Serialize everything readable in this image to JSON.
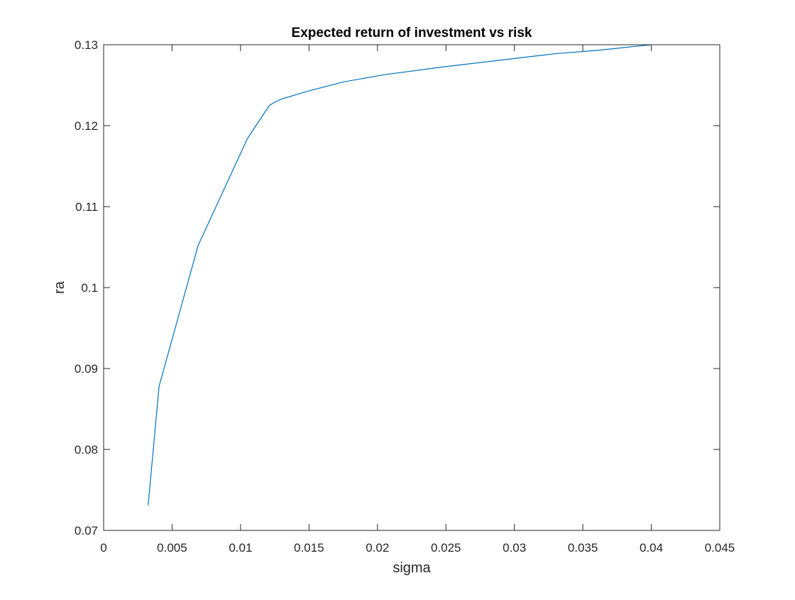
{
  "chart_data": {
    "type": "line",
    "title": "Expected return of investment vs risk",
    "xlabel": "sigma",
    "ylabel": "ra",
    "xlim": [
      0,
      0.045
    ],
    "ylim": [
      0.07,
      0.13
    ],
    "xticks": [
      0,
      0.005,
      0.01,
      0.015,
      0.02,
      0.025,
      0.03,
      0.035,
      0.04,
      0.045
    ],
    "xtick_labels": [
      "0",
      "0.005",
      "0.01",
      "0.015",
      "0.02",
      "0.025",
      "0.03",
      "0.035",
      "0.04",
      "0.045"
    ],
    "yticks": [
      0.07,
      0.08,
      0.09,
      0.1,
      0.11,
      0.12,
      0.13
    ],
    "ytick_labels": [
      "0.07",
      "0.08",
      "0.09",
      "0.1",
      "0.11",
      "0.12",
      "0.13"
    ],
    "grid": false,
    "series": [
      {
        "color": "#0072BD",
        "x": [
          0.00325,
          0.00405,
          0.0069,
          0.0105,
          0.0121,
          0.0125,
          0.013,
          0.014,
          0.015,
          0.0175,
          0.0205,
          0.025,
          0.03,
          0.033,
          0.036,
          0.04
        ],
        "y": [
          0.0731,
          0.0878,
          0.1052,
          0.1184,
          0.1225,
          0.1229,
          0.1233,
          0.1238,
          0.1243,
          0.1254,
          0.1263,
          0.1273,
          0.1283,
          0.1289,
          0.1293,
          0.13
        ]
      }
    ]
  }
}
